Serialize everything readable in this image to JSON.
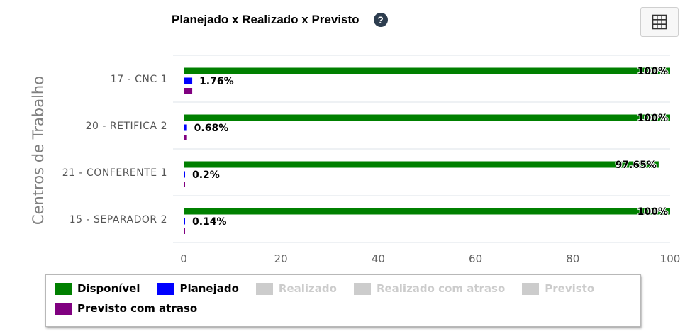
{
  "header": {
    "title": "Planejado x Realizado x Previsto",
    "help_icon_glyph": "?"
  },
  "chart_data": {
    "type": "bar",
    "orientation": "horizontal",
    "title": "Planejado x Realizado x Previsto",
    "ylabel": "Centros de Trabalho",
    "xlabel": "",
    "xlim": [
      0,
      100
    ],
    "xticks": [
      "0",
      "20",
      "40",
      "60",
      "80",
      "100"
    ],
    "categories": [
      "17 - CNC 1",
      "20 - RETIFICA 2",
      "21 - CONFERENTE 1",
      "15 - SEPARADOR 2"
    ],
    "series": [
      {
        "name": "Disponível",
        "color": "#008000",
        "visible": true,
        "values": [
          100,
          100,
          97.65,
          100
        ],
        "labels": [
          "100%",
          "100%",
          "97.65%",
          "100%"
        ]
      },
      {
        "name": "Planejado",
        "color": "#0000ff",
        "visible": true,
        "values": [
          1.76,
          0.68,
          0.2,
          0.14
        ],
        "labels": [
          "1.76%",
          "0.68%",
          "0.2%",
          "0.14%"
        ]
      },
      {
        "name": "Previsto com atraso",
        "color": "#800080",
        "visible": true,
        "values": [
          1.76,
          0.68,
          0.2,
          0.14
        ],
        "labels": []
      }
    ],
    "grid": false,
    "legend_position": "bottom"
  },
  "legend": {
    "items": [
      {
        "label": "Disponível",
        "color": "#008000",
        "active": true
      },
      {
        "label": "Planejado",
        "color": "#0000ff",
        "active": true
      },
      {
        "label": "Realizado",
        "color": "#cccccc",
        "active": false
      },
      {
        "label": "Realizado com atraso",
        "color": "#cccccc",
        "active": false
      },
      {
        "label": "Previsto",
        "color": "#cccccc",
        "active": false
      },
      {
        "label": "Previsto com atraso",
        "color": "#800080",
        "active": true
      }
    ]
  },
  "toolbar": {
    "table_icon": "table-grid-icon"
  }
}
